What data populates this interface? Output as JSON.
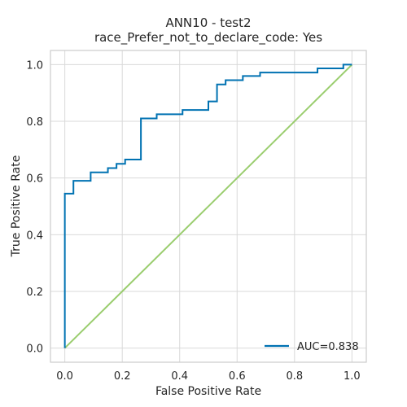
{
  "chart_data": {
    "type": "line",
    "title": "ANN10 - test2",
    "subtitle": "race_Prefer_not_to_declare_code: Yes",
    "xlabel": "False Positive Rate",
    "ylabel": "True Positive Rate",
    "xlim": [
      -0.05,
      1.05
    ],
    "ylim": [
      -0.05,
      1.05
    ],
    "xticks": [
      0.0,
      0.2,
      0.4,
      0.6,
      0.8,
      1.0
    ],
    "yticks": [
      0.0,
      0.2,
      0.4,
      0.6,
      0.8,
      1.0
    ],
    "xtick_labels": [
      "0.0",
      "0.2",
      "0.4",
      "0.6",
      "0.8",
      "1.0"
    ],
    "ytick_labels": [
      "0.0",
      "0.2",
      "0.4",
      "0.6",
      "0.8",
      "1.0"
    ],
    "grid": true,
    "legend_position": "lower-right",
    "series": [
      {
        "name": "AUC=0.838",
        "color": "#0072B2",
        "x": [
          0.0,
          0.0,
          0.03,
          0.03,
          0.09,
          0.09,
          0.15,
          0.15,
          0.18,
          0.18,
          0.21,
          0.21,
          0.265,
          0.265,
          0.32,
          0.32,
          0.41,
          0.41,
          0.5,
          0.5,
          0.53,
          0.53,
          0.56,
          0.56,
          0.62,
          0.62,
          0.68,
          0.68,
          0.88,
          0.88,
          0.97,
          0.97,
          1.0
        ],
        "y": [
          0.0,
          0.545,
          0.545,
          0.59,
          0.59,
          0.62,
          0.62,
          0.635,
          0.635,
          0.65,
          0.65,
          0.665,
          0.665,
          0.81,
          0.81,
          0.825,
          0.825,
          0.84,
          0.84,
          0.87,
          0.87,
          0.93,
          0.93,
          0.945,
          0.945,
          0.96,
          0.96,
          0.972,
          0.972,
          0.987,
          0.987,
          1.0,
          1.0
        ]
      },
      {
        "color": "#9ACD6E",
        "x": [
          0.0,
          1.0
        ],
        "y": [
          0.0,
          1.0
        ]
      }
    ]
  }
}
